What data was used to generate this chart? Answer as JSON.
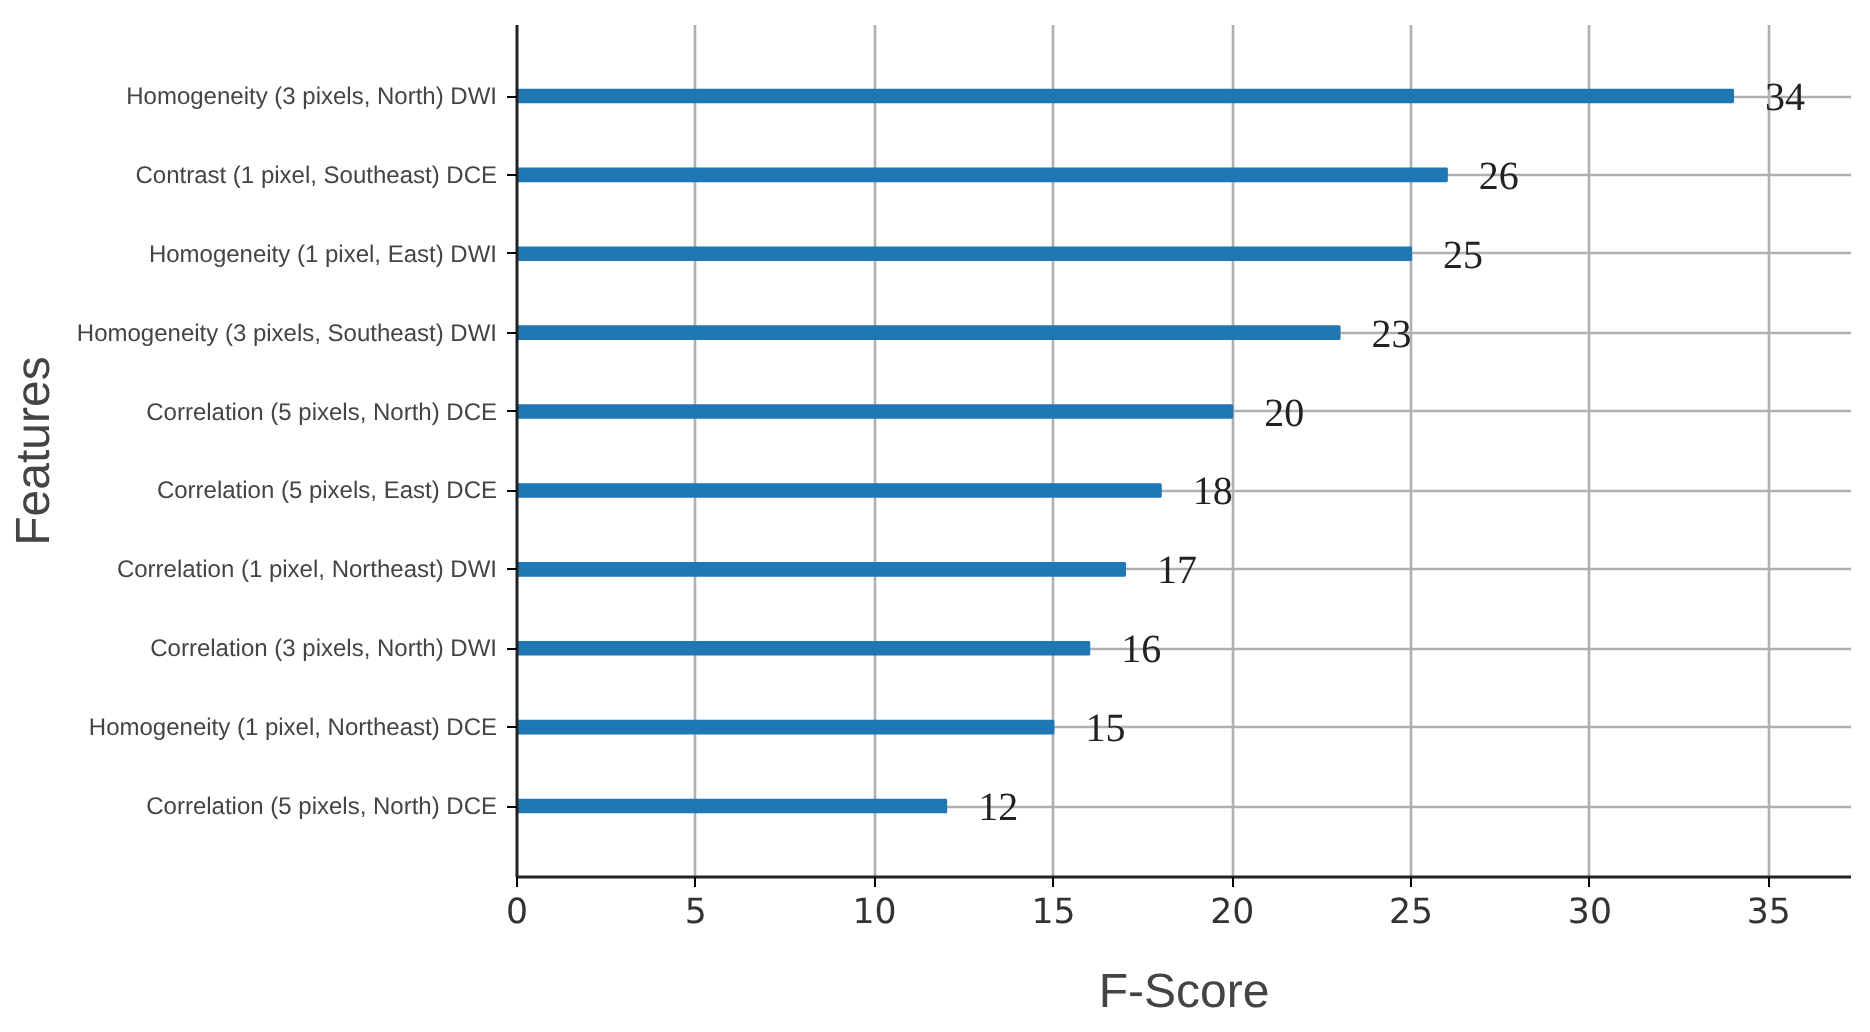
{
  "chart_data": {
    "type": "bar",
    "orientation": "horizontal",
    "xlabel": "F-Score",
    "ylabel": "Features",
    "categories": [
      "Homogeneity (3 pixels, North) DWI",
      "Contrast (1 pixel, Southeast) DCE",
      "Homogeneity (1 pixel, East) DWI",
      "Homogeneity (3 pixels, Southeast) DWI",
      "Correlation (5 pixels, North) DCE",
      "Correlation (5 pixels, East) DCE",
      "Correlation (1 pixel, Northeast) DWI",
      "Correlation (3 pixels, North) DWI",
      "Homogeneity (1 pixel, Northeast) DCE",
      "Correlation (5 pixels, North) DCE"
    ],
    "values": [
      34,
      26,
      25,
      23,
      20,
      18,
      17,
      16,
      15,
      12
    ],
    "color": "#1f77b4",
    "xlim": [
      0,
      37.3
    ],
    "xticks": [
      0,
      5,
      10,
      15,
      20,
      25,
      30,
      35
    ],
    "grid": true,
    "data_labels": true
  }
}
